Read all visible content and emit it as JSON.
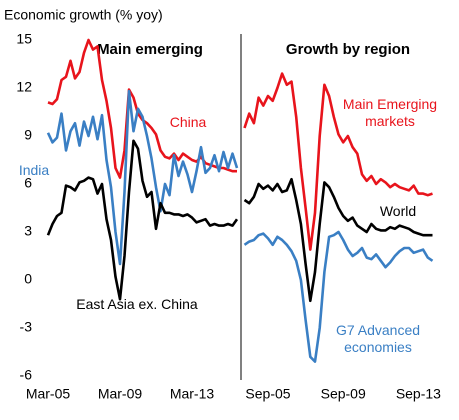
{
  "chart_data": [
    {
      "type": "line",
      "title": "Main emerging",
      "y_label": "Economic growth (% yoy)",
      "categories": [
        "Mar-05",
        null,
        null,
        null,
        null,
        null,
        null,
        null,
        null,
        null,
        null,
        null,
        null,
        null,
        null,
        null,
        "Mar-09",
        null,
        null,
        null,
        null,
        null,
        null,
        null,
        null,
        null,
        null,
        null,
        null,
        null,
        null,
        null,
        "Mar-13",
        null,
        null,
        null,
        null,
        null,
        null,
        null,
        null,
        null,
        null
      ],
      "ylim": [
        -6,
        15
      ],
      "yticks": [
        -6,
        -3,
        0,
        3,
        6,
        9,
        12,
        15
      ],
      "series": [
        {
          "name": "China",
          "color": "#e8141c",
          "values": [
            11.1,
            11.0,
            11.3,
            12.5,
            12.7,
            13.7,
            12.6,
            13.0,
            14.2,
            15.0,
            14.4,
            14.6,
            12.5,
            11.2,
            9.5,
            7.0,
            6.4,
            8.1,
            11.9,
            11.4,
            10.4,
            10.0,
            9.8,
            9.5,
            9.1,
            8.1,
            7.7,
            7.6,
            7.9,
            7.5,
            7.9,
            7.7,
            7.5,
            7.4,
            7.7,
            7.3,
            7.2,
            7.1,
            7.0,
            7.0,
            6.9,
            6.8,
            6.8
          ]
        },
        {
          "name": "India",
          "color": "#3a7fc4",
          "values": [
            9.2,
            8.6,
            8.9,
            10.4,
            8.1,
            9.3,
            9.8,
            8.4,
            9.9,
            9.0,
            10.2,
            8.8,
            10.3,
            7.5,
            5.8,
            3.0,
            1.0,
            5.5,
            11.8,
            9.3,
            10.7,
            10.2,
            9.0,
            7.6,
            5.8,
            4.3,
            6.0,
            5.3,
            7.8,
            6.5,
            7.4,
            6.6,
            5.5,
            6.8,
            8.3,
            6.7,
            7.0,
            7.8,
            6.8,
            8.0,
            7.0,
            7.9,
            7.0
          ]
        },
        {
          "name": "East Asia ex. China",
          "color": "#000000",
          "values": [
            2.8,
            3.5,
            4.0,
            4.2,
            5.9,
            5.8,
            5.6,
            6.1,
            6.2,
            6.4,
            6.3,
            5.4,
            6.0,
            3.8,
            2.5,
            0.2,
            -1.2,
            1.5,
            5.5,
            8.7,
            8.2,
            6.2,
            5.2,
            5.5,
            3.2,
            4.8,
            4.2,
            4.2,
            4.1,
            4.1,
            4.0,
            4.1,
            3.9,
            3.6,
            3.7,
            3.8,
            3.4,
            3.5,
            3.4,
            3.4,
            3.5,
            3.4,
            3.8
          ]
        }
      ]
    },
    {
      "type": "line",
      "title": "Growth by region",
      "categories": [
        null,
        null,
        null,
        null,
        null,
        "Sep-05",
        null,
        null,
        null,
        null,
        null,
        null,
        null,
        null,
        null,
        null,
        null,
        null,
        null,
        null,
        null,
        "Sep-09",
        null,
        null,
        null,
        null,
        null,
        null,
        null,
        null,
        null,
        null,
        null,
        null,
        null,
        null,
        null,
        "Sep-13",
        null,
        null,
        null
      ],
      "ylim": [
        -6,
        15
      ],
      "series": [
        {
          "name": "Main Emerging markets",
          "color": "#e8141c",
          "values": [
            9.5,
            10.4,
            9.8,
            11.4,
            10.9,
            11.5,
            11.2,
            12.0,
            12.9,
            12.2,
            12.4,
            10.2,
            7.0,
            4.5,
            1.9,
            4.2,
            9.0,
            12.2,
            11.5,
            10.2,
            9.1,
            8.6,
            9.0,
            8.3,
            7.9,
            6.6,
            6.2,
            6.5,
            6.0,
            6.3,
            6.1,
            5.8,
            6.0,
            5.8,
            5.7,
            5.6,
            5.9,
            5.4,
            5.4,
            5.3,
            5.4
          ]
        },
        {
          "name": "World",
          "color": "#000000",
          "values": [
            5.0,
            4.8,
            5.2,
            6.0,
            5.7,
            5.9,
            5.6,
            6.0,
            5.5,
            5.6,
            6.3,
            5.0,
            3.5,
            1.0,
            -1.3,
            0.5,
            3.5,
            6.1,
            5.8,
            5.2,
            4.5,
            4.0,
            3.7,
            3.9,
            3.4,
            3.2,
            3.0,
            3.5,
            3.2,
            3.1,
            3.1,
            3.3,
            3.2,
            3.4,
            3.3,
            3.2,
            3.0,
            2.9,
            2.8,
            2.8,
            2.8
          ]
        },
        {
          "name": "G7 Advanced economies",
          "color": "#3a7fc4",
          "values": [
            2.2,
            2.4,
            2.5,
            2.8,
            2.9,
            2.6,
            2.2,
            2.7,
            2.5,
            2.2,
            1.8,
            1.2,
            0.0,
            -2.5,
            -4.8,
            -5.1,
            -3.0,
            0.5,
            2.7,
            2.8,
            3.0,
            2.5,
            1.9,
            1.5,
            1.7,
            2.0,
            1.4,
            1.3,
            1.6,
            1.2,
            0.8,
            1.1,
            1.5,
            1.8,
            2.0,
            2.0,
            1.7,
            1.8,
            1.9,
            1.4,
            1.2
          ]
        }
      ]
    }
  ]
}
